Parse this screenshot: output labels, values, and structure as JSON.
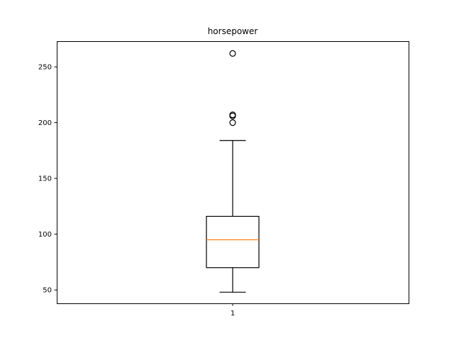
{
  "chart_data": {
    "type": "box",
    "title": "horsepower",
    "xlabel": "",
    "ylabel": "",
    "categories": [
      "1"
    ],
    "ylim": [
      38,
      273
    ],
    "yticks": [
      50,
      100,
      150,
      200,
      250
    ],
    "box": {
      "whisker_low": 48,
      "q1": 70,
      "median": 95,
      "q3": 116,
      "whisker_high": 184,
      "outliers": [
        200,
        206,
        207,
        262
      ]
    },
    "grid": false,
    "legend": "none"
  },
  "colors": {
    "median": "#ff7f0e",
    "lines": "#000000",
    "background": "#ffffff"
  }
}
